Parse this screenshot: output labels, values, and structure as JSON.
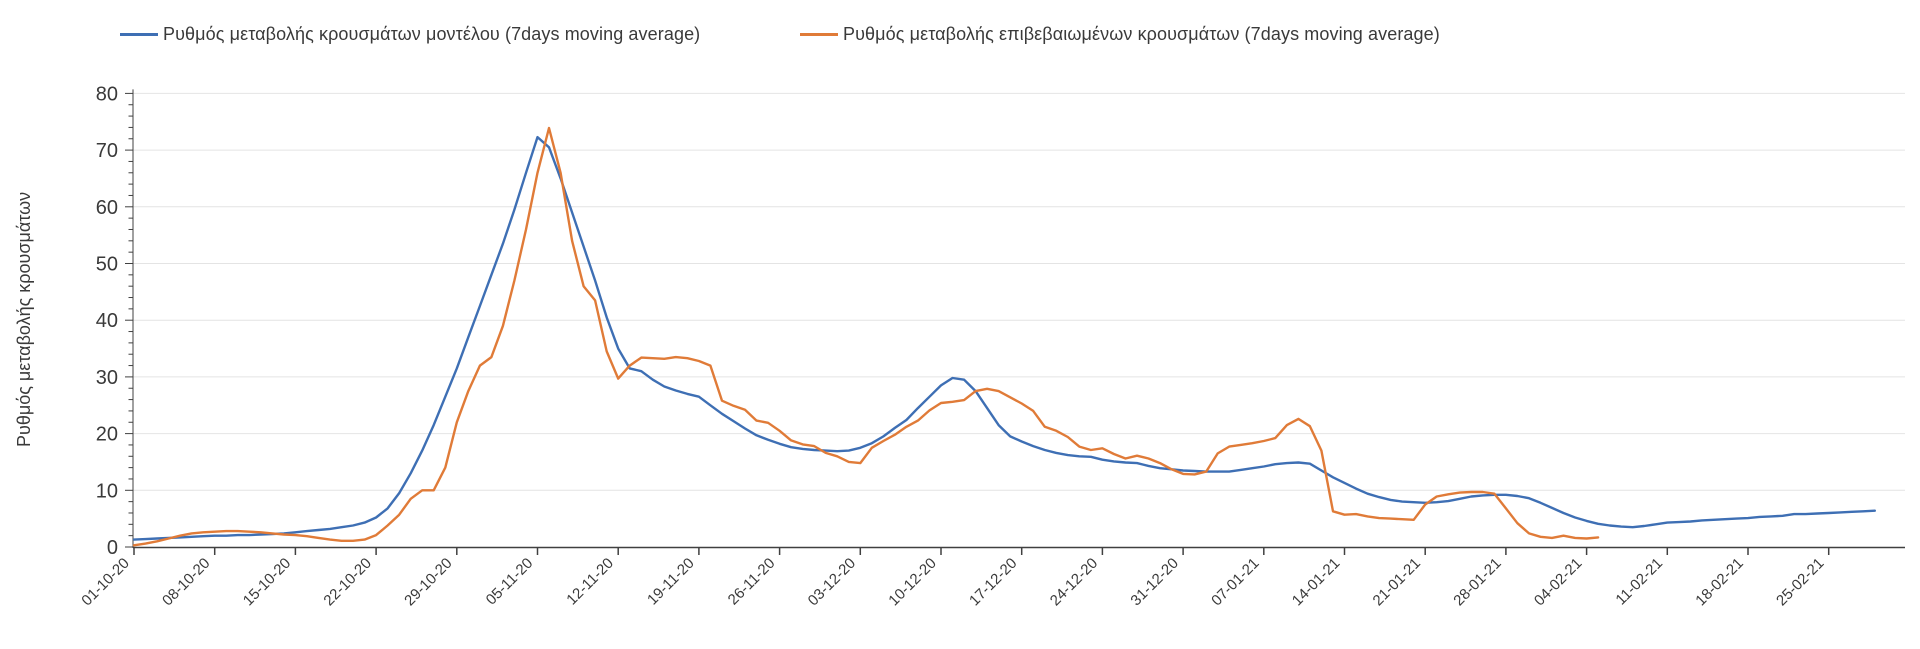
{
  "chart_data": {
    "type": "line",
    "title": "",
    "ylabel": "Ρυθμός μεταβολής κρουσμάτων",
    "xlabel": "",
    "ylim": [
      0,
      80
    ],
    "y_ticks": [
      0,
      10,
      20,
      30,
      40,
      50,
      60,
      70,
      80
    ],
    "x_tick_labels": [
      "01-10-20",
      "08-10-20",
      "15-10-20",
      "22-10-20",
      "29-10-20",
      "05-11-20",
      "12-11-20",
      "19-11-20",
      "26-11-20",
      "03-12-20",
      "10-12-20",
      "17-12-20",
      "24-12-20",
      "31-12-20",
      "07-01-21",
      "14-01-21",
      "21-01-21",
      "28-01-21",
      "04-02-21",
      "11-02-21",
      "18-02-21",
      "25-02-21"
    ],
    "x_tick_interval_days": 7,
    "grid": "horizontal-only",
    "legend_position": "top",
    "series": [
      {
        "name": "Ρυθμός μεταβολής κρουσμάτων μοντέλου (7days moving average)",
        "color": "#3E6FB4",
        "start_date": "01-10-20",
        "interval": "daily",
        "values": [
          1.3,
          1.4,
          1.5,
          1.6,
          1.7,
          1.8,
          1.9,
          2.0,
          2.0,
          2.1,
          2.1,
          2.2,
          2.3,
          2.4,
          2.6,
          2.8,
          3.0,
          3.2,
          3.5,
          3.8,
          4.3,
          5.2,
          6.8,
          9.5,
          13.0,
          17.0,
          21.5,
          26.5,
          31.5,
          37.0,
          42.5,
          48.0,
          53.5,
          59.5,
          66.0,
          72.3,
          70.5,
          65.0,
          59.0,
          53.0,
          47.0,
          40.5,
          35.0,
          31.5,
          31.0,
          29.5,
          28.3,
          27.6,
          27.0,
          26.5,
          25.0,
          23.5,
          22.2,
          20.9,
          19.7,
          18.9,
          18.2,
          17.6,
          17.3,
          17.1,
          17.0,
          16.9,
          17.0,
          17.5,
          18.3,
          19.5,
          21.0,
          22.4,
          24.5,
          26.5,
          28.5,
          29.8,
          29.5,
          27.5,
          24.5,
          21.5,
          19.5,
          18.6,
          17.8,
          17.1,
          16.6,
          16.2,
          16.0,
          15.9,
          15.4,
          15.1,
          14.9,
          14.8,
          14.3,
          13.9,
          13.7,
          13.5,
          13.4,
          13.3,
          13.3,
          13.3,
          13.6,
          13.9,
          14.2,
          14.6,
          14.8,
          14.9,
          14.7,
          13.5,
          12.3,
          11.3,
          10.3,
          9.4,
          8.8,
          8.3,
          8.0,
          7.9,
          7.8,
          7.9,
          8.1,
          8.5,
          8.9,
          9.1,
          9.2,
          9.2,
          9.0,
          8.6,
          7.8,
          6.9,
          6.0,
          5.2,
          4.6,
          4.1,
          3.8,
          3.6,
          3.5,
          3.7,
          4.0,
          4.3,
          4.4,
          4.5,
          4.7,
          4.8,
          4.9,
          5.0,
          5.1,
          5.3,
          5.4,
          5.5,
          5.8,
          5.8,
          5.9,
          6.0,
          6.1,
          6.2,
          6.3,
          6.4
        ]
      },
      {
        "name": "Ρυθμός μεταβολής επιβεβαιωμένων κρουσμάτων (7days moving average)",
        "color": "#E07B38",
        "start_date": "01-10-20",
        "interval": "daily",
        "values": [
          0.3,
          0.6,
          1.0,
          1.5,
          2.0,
          2.4,
          2.6,
          2.7,
          2.8,
          2.8,
          2.7,
          2.6,
          2.4,
          2.2,
          2.1,
          1.9,
          1.6,
          1.3,
          1.1,
          1.1,
          1.3,
          2.1,
          3.8,
          5.7,
          8.5,
          10.0,
          10.0,
          14.0,
          22.0,
          27.5,
          32.0,
          33.5,
          39.0,
          47.0,
          56.0,
          66.0,
          73.9,
          66.0,
          54.0,
          46.0,
          43.5,
          34.5,
          29.7,
          32.0,
          33.4,
          33.3,
          33.2,
          33.5,
          33.3,
          32.8,
          32.0,
          25.8,
          24.9,
          24.2,
          22.3,
          21.9,
          20.5,
          18.8,
          18.1,
          17.8,
          16.6,
          16.0,
          15.0,
          14.8,
          17.5,
          18.7,
          19.8,
          21.2,
          22.3,
          24.1,
          25.4,
          25.6,
          25.9,
          27.5,
          27.9,
          27.5,
          26.4,
          25.3,
          24.0,
          21.2,
          20.5,
          19.4,
          17.7,
          17.1,
          17.4,
          16.4,
          15.6,
          16.1,
          15.6,
          14.8,
          13.7,
          12.9,
          12.8,
          13.3,
          16.5,
          17.7,
          18.0,
          18.3,
          18.7,
          19.2,
          21.5,
          22.6,
          21.3,
          17.0,
          6.3,
          5.7,
          5.8,
          5.4,
          5.1,
          5.0,
          4.9,
          4.8,
          7.5,
          8.9,
          9.3,
          9.6,
          9.7,
          9.7,
          9.4,
          6.8,
          4.2,
          2.4,
          1.8,
          1.6,
          2.0,
          1.6,
          1.5,
          1.7
        ]
      }
    ],
    "axis_color": "#404040",
    "gridline_color": "#e4e4e4"
  }
}
